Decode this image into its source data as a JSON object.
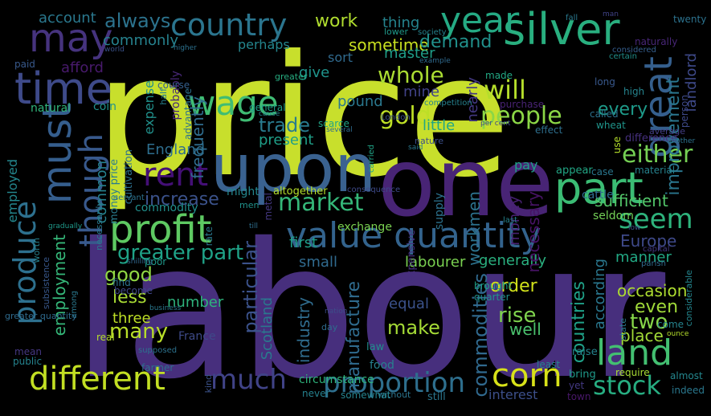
{
  "words": [
    {
      "text": "price",
      "color": "#c8df2c"
    },
    {
      "text": "labour",
      "color": "#472f7d"
    },
    {
      "text": "one",
      "color": "#482475"
    },
    {
      "text": "upon",
      "color": "#3a6290"
    },
    {
      "text": "silver",
      "color": "#29af7f"
    },
    {
      "text": "year",
      "color": "#25aa84"
    },
    {
      "text": "country",
      "color": "#2b758e"
    },
    {
      "text": "may",
      "color": "#46337e"
    },
    {
      "text": "time",
      "color": "#3e4a89"
    },
    {
      "text": "must",
      "color": "#355e8d"
    },
    {
      "text": "wage",
      "color": "#3fbc73"
    },
    {
      "text": "part",
      "color": "#3bbc74"
    },
    {
      "text": "great",
      "color": "#355f8d"
    },
    {
      "text": "profit",
      "color": "#5ec962"
    },
    {
      "text": "value quantity",
      "color": "#33638d"
    },
    {
      "text": "though",
      "color": "#38598c"
    },
    {
      "text": "rent",
      "color": "#440f76"
    },
    {
      "text": "produce",
      "color": "#2d708e"
    },
    {
      "text": "land",
      "color": "#43bf71"
    },
    {
      "text": "different",
      "color": "#c2df23"
    },
    {
      "text": "much",
      "color": "#404387"
    },
    {
      "text": "proportion",
      "color": "#2e6f8e"
    },
    {
      "text": "corn",
      "color": "#d8e219"
    },
    {
      "text": "stock",
      "color": "#27ad81"
    },
    {
      "text": "market",
      "color": "#35b779"
    },
    {
      "text": "seem",
      "color": "#2eb37c"
    },
    {
      "text": "greater part",
      "color": "#1fa287"
    },
    {
      "text": "either",
      "color": "#75d054"
    },
    {
      "text": "people",
      "color": "#8bd646"
    },
    {
      "text": "gold",
      "color": "#bddf26"
    },
    {
      "text": "will",
      "color": "#b5de2b"
    },
    {
      "text": "whole",
      "color": "#aadc32"
    },
    {
      "text": "trade",
      "color": "#297b8e"
    },
    {
      "text": "increase",
      "color": "#3b528b"
    },
    {
      "text": "work",
      "color": "#b0dd2f"
    },
    {
      "text": "always",
      "color": "#2c738e"
    },
    {
      "text": "commonly",
      "color": "#26828e"
    },
    {
      "text": "sometime",
      "color": "#c8e020"
    },
    {
      "text": "demand",
      "color": "#21918c"
    },
    {
      "text": "master",
      "color": "#1f9e89"
    },
    {
      "text": "account",
      "color": "#2a788e"
    },
    {
      "text": "afford",
      "color": "#481a6c"
    },
    {
      "text": "every",
      "color": "#1e9b8a"
    },
    {
      "text": "improvement",
      "color": "#2a768e"
    },
    {
      "text": "landlord",
      "color": "#3e4989"
    },
    {
      "text": "nearly",
      "color": "#443983"
    },
    {
      "text": "pound",
      "color": "#2a788e"
    },
    {
      "text": "mine",
      "color": "#414287"
    },
    {
      "text": "little",
      "color": "#21a685"
    },
    {
      "text": "give",
      "color": "#1f948c"
    },
    {
      "text": "sort",
      "color": "#306a8e"
    },
    {
      "text": "perhaps",
      "color": "#24868e"
    },
    {
      "text": "thing",
      "color": "#25848e"
    },
    {
      "text": "frequently",
      "color": "#2f6c8e"
    },
    {
      "text": "expense",
      "color": "#21918c"
    },
    {
      "text": "present",
      "color": "#1f9f88"
    },
    {
      "text": "England",
      "color": "#2e6e8e"
    },
    {
      "text": "common",
      "color": "#26828e"
    },
    {
      "text": "employed",
      "color": "#24878e"
    },
    {
      "text": "Europe",
      "color": "#3e4989"
    },
    {
      "text": "sufficient",
      "color": "#52c569"
    },
    {
      "text": "pay",
      "color": "#1fa188"
    },
    {
      "text": "manner",
      "color": "#22a884"
    },
    {
      "text": "good",
      "color": "#90d743"
    },
    {
      "text": "employment",
      "color": "#35b779"
    },
    {
      "text": "particular",
      "color": "#3b528b"
    },
    {
      "text": "first",
      "color": "#1f9e89"
    },
    {
      "text": "small",
      "color": "#306a8e"
    },
    {
      "text": "labourer",
      "color": "#7ad151"
    },
    {
      "text": "generally",
      "color": "#2ab07f"
    },
    {
      "text": "less",
      "color": "#a8db34"
    },
    {
      "text": "many",
      "color": "#b8de29"
    },
    {
      "text": "three",
      "color": "#bddf26"
    },
    {
      "text": "two",
      "color": "#86d549"
    },
    {
      "text": "even",
      "color": "#a0da39"
    },
    {
      "text": "rise",
      "color": "#7fd34e"
    },
    {
      "text": "make",
      "color": "#a5db36"
    },
    {
      "text": "well",
      "color": "#4ac16d"
    },
    {
      "text": "order",
      "color": "#d2e21b"
    },
    {
      "text": "occasion",
      "color": "#addc30"
    },
    {
      "text": "place",
      "color": "#a2da37"
    },
    {
      "text": "number",
      "color": "#2eb37c"
    },
    {
      "text": "Scotland",
      "color": "#2a788e"
    },
    {
      "text": "industry",
      "color": "#2f6c8e"
    },
    {
      "text": "manufacture",
      "color": "#2f6b8e"
    },
    {
      "text": "commodities",
      "color": "#30698e"
    },
    {
      "text": "countries",
      "color": "#1fa188"
    },
    {
      "text": "according",
      "color": "#2a778e"
    },
    {
      "text": "workmen",
      "color": "#2c728e"
    },
    {
      "text": "money",
      "color": "#482173"
    },
    {
      "text": "necessary",
      "color": "#471365"
    },
    {
      "text": "equal",
      "color": "#3b528b"
    },
    {
      "text": "interest",
      "color": "#3c4f8a"
    },
    {
      "text": "cattle",
      "color": "#2f6b8e"
    },
    {
      "text": "seldom",
      "color": "#73d056"
    },
    {
      "text": "exchange",
      "color": "#7ad151"
    },
    {
      "text": "altogether",
      "color": "#b5de2b"
    },
    {
      "text": "might",
      "color": "#24868e"
    },
    {
      "text": "commodity",
      "color": "#21908d"
    },
    {
      "text": "natural",
      "color": "#31b57b"
    },
    {
      "text": "coin",
      "color": "#20928c"
    },
    {
      "text": "paid",
      "color": "#38598c"
    },
    {
      "text": "cultivation",
      "color": "#2d708e"
    },
    {
      "text": "money price",
      "color": "#297b8e"
    },
    {
      "text": "advantage",
      "color": "#2c728e"
    },
    {
      "text": "probably",
      "color": "#482878"
    },
    {
      "text": "expensive",
      "color": "#46307e"
    },
    {
      "text": "supply",
      "color": "#2c728e"
    },
    {
      "text": "metal",
      "color": "#453882"
    },
    {
      "text": "rate",
      "color": "#2a788e"
    },
    {
      "text": "poor",
      "color": "#1f998a"
    },
    {
      "text": "circumstance",
      "color": "#2eb37c"
    },
    {
      "text": "food",
      "color": "#27808e"
    },
    {
      "text": "law",
      "color": "#228c8d"
    },
    {
      "text": "still",
      "color": "#2a768e"
    },
    {
      "text": "without",
      "color": "#2b758e"
    },
    {
      "text": "somewhat",
      "color": "#25838e"
    },
    {
      "text": "never",
      "color": "#26818e"
    },
    {
      "text": "bring",
      "color": "#1f9a8a"
    },
    {
      "text": "require",
      "color": "#a8db34"
    },
    {
      "text": "almost",
      "color": "#24878e"
    },
    {
      "text": "indeed",
      "color": "#2a788e"
    },
    {
      "text": "town",
      "color": "#481769"
    },
    {
      "text": "yet",
      "color": "#443983"
    },
    {
      "text": "least",
      "color": "#26828e"
    },
    {
      "text": "raise",
      "color": "#25848e"
    },
    {
      "text": "quarter",
      "color": "#20928c"
    },
    {
      "text": "brought",
      "color": "#1fa088"
    },
    {
      "text": "appear",
      "color": "#22a785"
    },
    {
      "text": "case",
      "color": "#2a768e"
    },
    {
      "text": "material",
      "color": "#26828e"
    },
    {
      "text": "effect",
      "color": "#2e6f8e"
    },
    {
      "text": "wheat",
      "color": "#1f958b"
    },
    {
      "text": "called",
      "color": "#2c728e"
    },
    {
      "text": "purchase",
      "color": "#482374"
    },
    {
      "text": "made",
      "color": "#22a884"
    },
    {
      "text": "scarce",
      "color": "#20a486"
    },
    {
      "text": "general",
      "color": "#1f9e89"
    },
    {
      "text": "greater",
      "color": "#27ad81"
    },
    {
      "text": "lower",
      "color": "#1f998a"
    },
    {
      "text": "society",
      "color": "#25838e"
    },
    {
      "text": "example",
      "color": "#306a8e"
    },
    {
      "text": "London",
      "color": "#3b528b"
    },
    {
      "text": "competition",
      "color": "#26828e"
    },
    {
      "text": "nature",
      "color": "#3c4f8a"
    },
    {
      "text": "said",
      "color": "#2a788e"
    },
    {
      "text": "per cent",
      "color": "#3e4a89"
    },
    {
      "text": "half",
      "color": "#27808e"
    },
    {
      "text": "course",
      "color": "#355f8d"
    },
    {
      "text": "long",
      "color": "#38588c"
    },
    {
      "text": "high",
      "color": "#25848e"
    },
    {
      "text": "person",
      "color": "#3e4989"
    },
    {
      "text": "naturally",
      "color": "#482677"
    },
    {
      "text": "twenty",
      "color": "#2c728e"
    },
    {
      "text": "fall",
      "color": "#29798e"
    },
    {
      "text": "man",
      "color": "#404387"
    },
    {
      "text": "considered",
      "color": "#355e8d"
    },
    {
      "text": "certain",
      "color": "#21918c"
    },
    {
      "text": "higher",
      "color": "#2c718e"
    },
    {
      "text": "world",
      "color": "#3b528b"
    },
    {
      "text": "difference",
      "color": "#46307e"
    },
    {
      "text": "use",
      "color": "#b5de2b"
    },
    {
      "text": "another",
      "color": "#2c728e"
    },
    {
      "text": "average",
      "color": "#433e85"
    },
    {
      "text": "cause",
      "color": "#26828e"
    },
    {
      "text": "several",
      "color": "#2f6b8e"
    },
    {
      "text": "carried",
      "color": "#20a386"
    },
    {
      "text": "consequence",
      "color": "#3e4a89"
    },
    {
      "text": "servant",
      "color": "#2c728e"
    },
    {
      "text": "men",
      "color": "#20928c"
    },
    {
      "text": "till",
      "color": "#2e6e8e"
    },
    {
      "text": "last",
      "color": "#25838e"
    },
    {
      "text": "low",
      "color": "#3b528b"
    },
    {
      "text": "necessarily",
      "color": "#2a788e"
    },
    {
      "text": "gradually",
      "color": "#1f998a"
    },
    {
      "text": "worth",
      "color": "#26818e"
    },
    {
      "text": "subsistence",
      "color": "#38588c"
    },
    {
      "text": "shilling",
      "color": "#31678e"
    },
    {
      "text": "find",
      "color": "#2c728e"
    },
    {
      "text": "become",
      "color": "#3f4788"
    },
    {
      "text": "business",
      "color": "#2a788e"
    },
    {
      "text": "France",
      "color": "#3e4a89"
    },
    {
      "text": "real",
      "color": "#b5de2b"
    },
    {
      "text": "supposed",
      "color": "#2c728e"
    },
    {
      "text": "mean",
      "color": "#453781"
    },
    {
      "text": "among",
      "color": "#2a788e"
    },
    {
      "text": "greater quantity",
      "color": "#2f6b8e"
    },
    {
      "text": "public",
      "color": "#25838e"
    },
    {
      "text": "farmer",
      "color": "#2e6f8e"
    },
    {
      "text": "kind",
      "color": "#3b528b"
    },
    {
      "text": "day",
      "color": "#2f6b8e"
    },
    {
      "text": "nation",
      "color": "#3d4e8a"
    },
    {
      "text": "capital",
      "color": "#443983"
    },
    {
      "text": "parish",
      "color": "#306a8e"
    },
    {
      "text": "considerable",
      "color": "#24868e"
    },
    {
      "text": "state",
      "color": "#2a788e"
    },
    {
      "text": "come",
      "color": "#25838e"
    },
    {
      "text": "ounce",
      "color": "#b5de2b"
    },
    {
      "text": "employ",
      "color": "#355f8d"
    }
  ]
}
